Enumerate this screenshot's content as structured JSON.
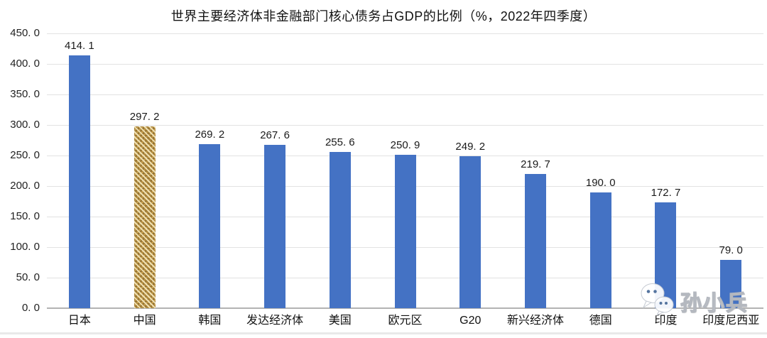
{
  "chart_data": {
    "type": "bar",
    "title": "世界主要经济体非金融部门核心债务占GDP的比例（%，2022年四季度）",
    "categories": [
      "日本",
      "中国",
      "韩国",
      "发达经济体",
      "美国",
      "欧元区",
      "G20",
      "新兴经济体",
      "德国",
      "印度",
      "印度尼西亚"
    ],
    "values": [
      414.1,
      297.2,
      269.2,
      267.6,
      255.6,
      250.9,
      249.2,
      219.7,
      190.0,
      172.7,
      79.0
    ],
    "value_labels": [
      "414. 1",
      "297. 2",
      "269. 2",
      "267. 6",
      "255. 6",
      "250. 9",
      "249. 2",
      "219. 7",
      "190. 0",
      "172. 7",
      "79. 0"
    ],
    "xlabel": "",
    "ylabel": "",
    "ylim": [
      0,
      450
    ],
    "ytick_step": 50,
    "ytick_labels": [
      "450. 0",
      "400. 0",
      "350. 0",
      "300. 0",
      "250. 0",
      "200. 0",
      "150. 0",
      "100. 0",
      "50. 0",
      "0. 0"
    ],
    "grid": true,
    "legend_position": "none",
    "bar_color": "#4472C4",
    "highlight_bar": {
      "index": 1,
      "category": "中国",
      "style": "gold-weave-texture",
      "colors": [
        "#c8a050",
        "#8a6a2e",
        "#ecdcae"
      ]
    },
    "gridline_color": "#e2e2e2",
    "axis_line_color": "#b3b3b3"
  },
  "watermark": {
    "text": "孙小兵",
    "icon": "wechat-icon"
  }
}
